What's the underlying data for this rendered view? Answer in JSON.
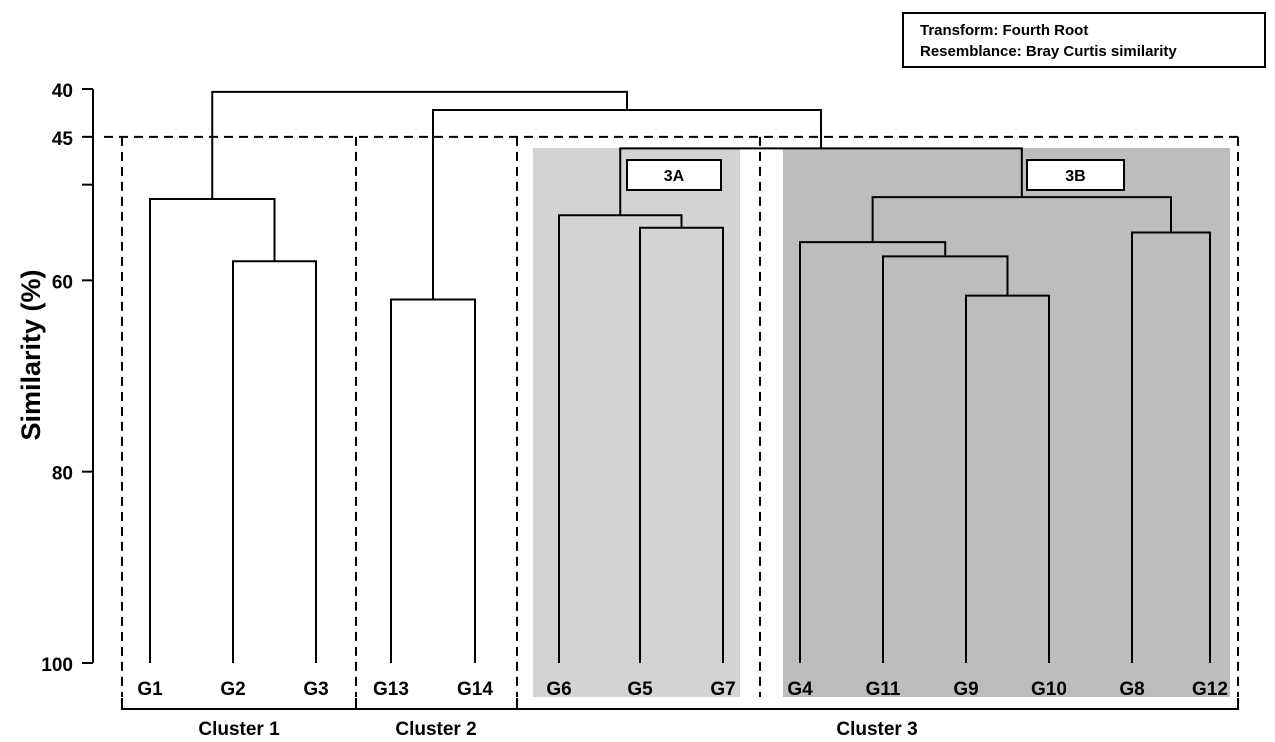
{
  "chart_data": {
    "type": "dendrogram",
    "title": "",
    "ylabel": "Similarity (%)",
    "ylim": [
      40,
      100
    ],
    "y_ticks": [
      40,
      45,
      60,
      80,
      100
    ],
    "y_minor_ticks": [
      50
    ],
    "leaves": [
      "G1",
      "G2",
      "G3",
      "G13",
      "G14",
      "G6",
      "G5",
      "G7",
      "G4",
      "G11",
      "G9",
      "G10",
      "G8",
      "G12"
    ],
    "merges": [
      {
        "left": "G2",
        "right": "G3",
        "similarity": 58
      },
      {
        "left": "G1",
        "right": "G2+G3",
        "similarity": 51.5
      },
      {
        "left": "G13",
        "right": "G14",
        "similarity": 62
      },
      {
        "left": "G5",
        "right": "G7",
        "similarity": 54.5
      },
      {
        "left": "G6",
        "right": "G5+G7",
        "similarity": 53.2
      },
      {
        "left": "G9",
        "right": "G10",
        "similarity": 61.6
      },
      {
        "left": "G11",
        "right": "G9+G10",
        "similarity": 57.5
      },
      {
        "left": "G4",
        "right": "G11+G9+G10",
        "similarity": 56
      },
      {
        "left": "G8",
        "right": "G12",
        "similarity": 55
      },
      {
        "left": "G4+G11+G9+G10",
        "right": "G8+G12",
        "similarity": 51.3
      },
      {
        "left": "3A",
        "right": "3B",
        "similarity": 46.2
      },
      {
        "left": "Cluster 2",
        "right": "Cluster 3",
        "similarity": 42.2
      },
      {
        "left": "Cluster 1",
        "right": "Cluster 2+3",
        "similarity": 40.3
      }
    ],
    "cutoff_similarity": 45,
    "clusters": [
      {
        "name": "Cluster 1",
        "members": [
          "G1",
          "G2",
          "G3"
        ]
      },
      {
        "name": "Cluster 2",
        "members": [
          "G13",
          "G14"
        ]
      },
      {
        "name": "Cluster 3",
        "members": [
          "G6",
          "G5",
          "G7",
          "G4",
          "G11",
          "G9",
          "G10",
          "G8",
          "G12"
        ]
      }
    ],
    "subgroups": [
      {
        "name": "3A",
        "members": [
          "G6",
          "G5",
          "G7"
        ],
        "color": "#d3d3d3"
      },
      {
        "name": "3B",
        "members": [
          "G4",
          "G11",
          "G9",
          "G10",
          "G8",
          "G12"
        ],
        "color": "#bdbdbd"
      }
    ],
    "annotation": {
      "transform": "Transform: Fourth Root",
      "resemblance": "Resemblance: Bray Curtis similarity"
    },
    "grid": false
  }
}
